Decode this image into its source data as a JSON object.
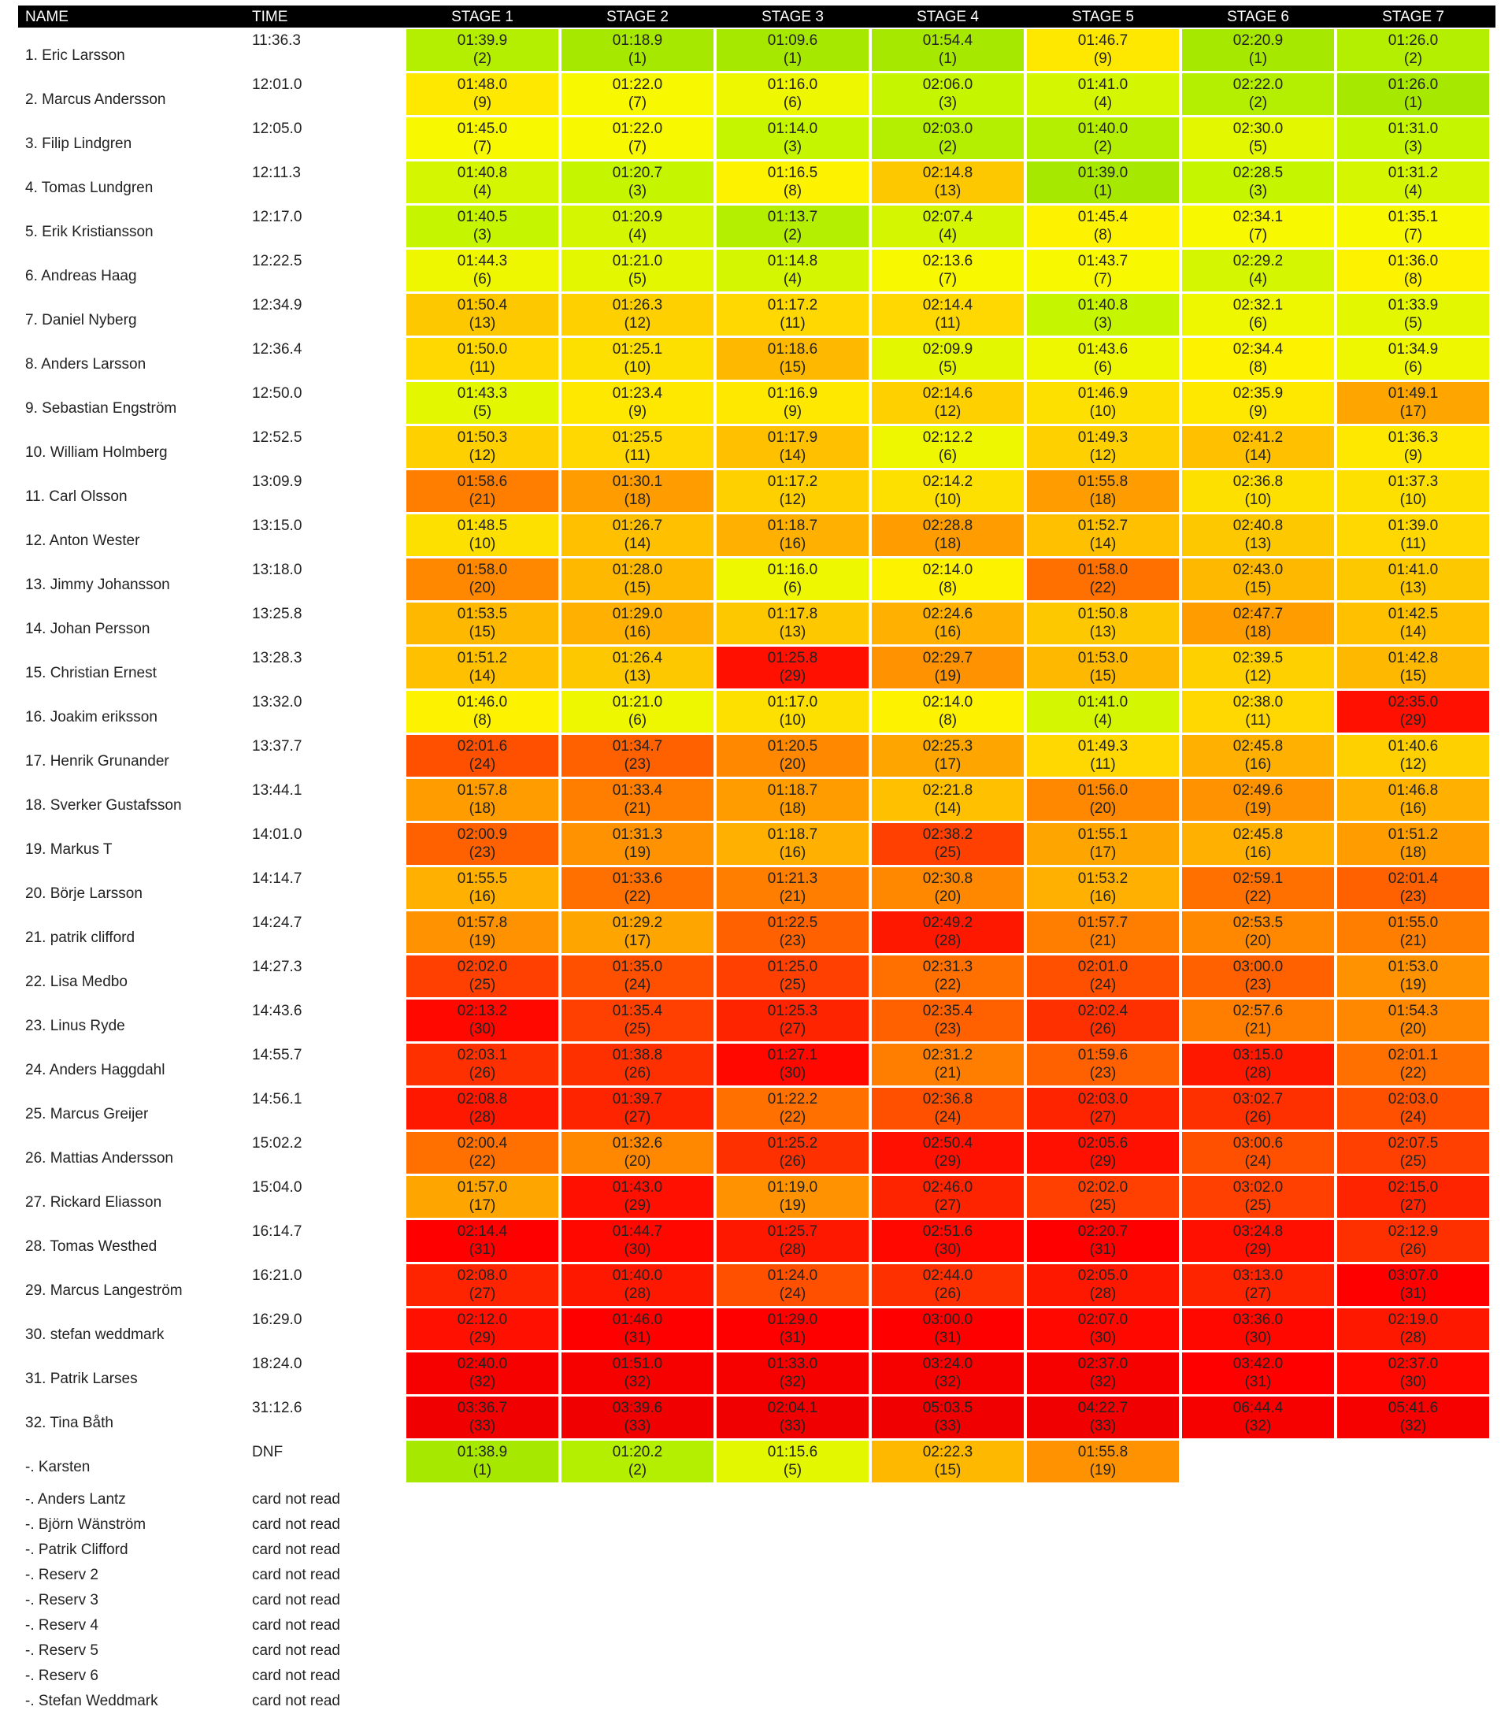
{
  "headers": {
    "name": "NAME",
    "time": "TIME",
    "stages": [
      "STAGE 1",
      "STAGE 2",
      "STAGE 3",
      "STAGE 4",
      "STAGE 5",
      "STAGE 6",
      "STAGE 7"
    ]
  },
  "rows": [
    {
      "name": "1. Eric Larsson",
      "time": "11:36.3",
      "stages": [
        [
          "01:39.9",
          "(2)"
        ],
        [
          "01:18.9",
          "(1)"
        ],
        [
          "01:09.6",
          "(1)"
        ],
        [
          "01:54.4",
          "(1)"
        ],
        [
          "01:46.7",
          "(9)"
        ],
        [
          "02:20.9",
          "(1)"
        ],
        [
          "01:26.0",
          "(2)"
        ]
      ]
    },
    {
      "name": "2. Marcus Andersson",
      "time": "12:01.0",
      "stages": [
        [
          "01:48.0",
          "(9)"
        ],
        [
          "01:22.0",
          "(7)"
        ],
        [
          "01:16.0",
          "(6)"
        ],
        [
          "02:06.0",
          "(3)"
        ],
        [
          "01:41.0",
          "(4)"
        ],
        [
          "02:22.0",
          "(2)"
        ],
        [
          "01:26.0",
          "(1)"
        ]
      ]
    },
    {
      "name": "3. Filip Lindgren",
      "time": "12:05.0",
      "stages": [
        [
          "01:45.0",
          "(7)"
        ],
        [
          "01:22.0",
          "(7)"
        ],
        [
          "01:14.0",
          "(3)"
        ],
        [
          "02:03.0",
          "(2)"
        ],
        [
          "01:40.0",
          "(2)"
        ],
        [
          "02:30.0",
          "(5)"
        ],
        [
          "01:31.0",
          "(3)"
        ]
      ]
    },
    {
      "name": "4. Tomas Lundgren",
      "time": "12:11.3",
      "stages": [
        [
          "01:40.8",
          "(4)"
        ],
        [
          "01:20.7",
          "(3)"
        ],
        [
          "01:16.5",
          "(8)"
        ],
        [
          "02:14.8",
          "(13)"
        ],
        [
          "01:39.0",
          "(1)"
        ],
        [
          "02:28.5",
          "(3)"
        ],
        [
          "01:31.2",
          "(4)"
        ]
      ]
    },
    {
      "name": "5. Erik Kristiansson",
      "time": "12:17.0",
      "stages": [
        [
          "01:40.5",
          "(3)"
        ],
        [
          "01:20.9",
          "(4)"
        ],
        [
          "01:13.7",
          "(2)"
        ],
        [
          "02:07.4",
          "(4)"
        ],
        [
          "01:45.4",
          "(8)"
        ],
        [
          "02:34.1",
          "(7)"
        ],
        [
          "01:35.1",
          "(7)"
        ]
      ]
    },
    {
      "name": "6. Andreas Haag",
      "time": "12:22.5",
      "stages": [
        [
          "01:44.3",
          "(6)"
        ],
        [
          "01:21.0",
          "(5)"
        ],
        [
          "01:14.8",
          "(4)"
        ],
        [
          "02:13.6",
          "(7)"
        ],
        [
          "01:43.7",
          "(7)"
        ],
        [
          "02:29.2",
          "(4)"
        ],
        [
          "01:36.0",
          "(8)"
        ]
      ]
    },
    {
      "name": "7. Daniel Nyberg",
      "time": "12:34.9",
      "stages": [
        [
          "01:50.4",
          "(13)"
        ],
        [
          "01:26.3",
          "(12)"
        ],
        [
          "01:17.2",
          "(11)"
        ],
        [
          "02:14.4",
          "(11)"
        ],
        [
          "01:40.8",
          "(3)"
        ],
        [
          "02:32.1",
          "(6)"
        ],
        [
          "01:33.9",
          "(5)"
        ]
      ]
    },
    {
      "name": "8. Anders Larsson",
      "time": "12:36.4",
      "stages": [
        [
          "01:50.0",
          "(11)"
        ],
        [
          "01:25.1",
          "(10)"
        ],
        [
          "01:18.6",
          "(15)"
        ],
        [
          "02:09.9",
          "(5)"
        ],
        [
          "01:43.6",
          "(6)"
        ],
        [
          "02:34.4",
          "(8)"
        ],
        [
          "01:34.9",
          "(6)"
        ]
      ]
    },
    {
      "name": "9. Sebastian Engström",
      "time": "12:50.0",
      "stages": [
        [
          "01:43.3",
          "(5)"
        ],
        [
          "01:23.4",
          "(9)"
        ],
        [
          "01:16.9",
          "(9)"
        ],
        [
          "02:14.6",
          "(12)"
        ],
        [
          "01:46.9",
          "(10)"
        ],
        [
          "02:35.9",
          "(9)"
        ],
        [
          "01:49.1",
          "(17)"
        ]
      ]
    },
    {
      "name": "10. William Holmberg",
      "time": "12:52.5",
      "stages": [
        [
          "01:50.3",
          "(12)"
        ],
        [
          "01:25.5",
          "(11)"
        ],
        [
          "01:17.9",
          "(14)"
        ],
        [
          "02:12.2",
          "(6)"
        ],
        [
          "01:49.3",
          "(12)"
        ],
        [
          "02:41.2",
          "(14)"
        ],
        [
          "01:36.3",
          "(9)"
        ]
      ]
    },
    {
      "name": "11. Carl Olsson",
      "time": "13:09.9",
      "stages": [
        [
          "01:58.6",
          "(21)"
        ],
        [
          "01:30.1",
          "(18)"
        ],
        [
          "01:17.2",
          "(12)"
        ],
        [
          "02:14.2",
          "(10)"
        ],
        [
          "01:55.8",
          "(18)"
        ],
        [
          "02:36.8",
          "(10)"
        ],
        [
          "01:37.3",
          "(10)"
        ]
      ]
    },
    {
      "name": "12. Anton Wester",
      "time": "13:15.0",
      "stages": [
        [
          "01:48.5",
          "(10)"
        ],
        [
          "01:26.7",
          "(14)"
        ],
        [
          "01:18.7",
          "(16)"
        ],
        [
          "02:28.8",
          "(18)"
        ],
        [
          "01:52.7",
          "(14)"
        ],
        [
          "02:40.8",
          "(13)"
        ],
        [
          "01:39.0",
          "(11)"
        ]
      ]
    },
    {
      "name": "13. Jimmy Johansson",
      "time": "13:18.0",
      "stages": [
        [
          "01:58.0",
          "(20)"
        ],
        [
          "01:28.0",
          "(15)"
        ],
        [
          "01:16.0",
          "(6)"
        ],
        [
          "02:14.0",
          "(8)"
        ],
        [
          "01:58.0",
          "(22)"
        ],
        [
          "02:43.0",
          "(15)"
        ],
        [
          "01:41.0",
          "(13)"
        ]
      ]
    },
    {
      "name": "14. Johan Persson",
      "time": "13:25.8",
      "stages": [
        [
          "01:53.5",
          "(15)"
        ],
        [
          "01:29.0",
          "(16)"
        ],
        [
          "01:17.8",
          "(13)"
        ],
        [
          "02:24.6",
          "(16)"
        ],
        [
          "01:50.8",
          "(13)"
        ],
        [
          "02:47.7",
          "(18)"
        ],
        [
          "01:42.5",
          "(14)"
        ]
      ]
    },
    {
      "name": "15. Christian Ernest",
      "time": "13:28.3",
      "stages": [
        [
          "01:51.2",
          "(14)"
        ],
        [
          "01:26.4",
          "(13)"
        ],
        [
          "01:25.8",
          "(29)"
        ],
        [
          "02:29.7",
          "(19)"
        ],
        [
          "01:53.0",
          "(15)"
        ],
        [
          "02:39.5",
          "(12)"
        ],
        [
          "01:42.8",
          "(15)"
        ]
      ]
    },
    {
      "name": "16. Joakim eriksson",
      "time": "13:32.0",
      "stages": [
        [
          "01:46.0",
          "(8)"
        ],
        [
          "01:21.0",
          "(6)"
        ],
        [
          "01:17.0",
          "(10)"
        ],
        [
          "02:14.0",
          "(8)"
        ],
        [
          "01:41.0",
          "(4)"
        ],
        [
          "02:38.0",
          "(11)"
        ],
        [
          "02:35.0",
          "(29)"
        ]
      ]
    },
    {
      "name": "17. Henrik Grunander",
      "time": "13:37.7",
      "stages": [
        [
          "02:01.6",
          "(24)"
        ],
        [
          "01:34.7",
          "(23)"
        ],
        [
          "01:20.5",
          "(20)"
        ],
        [
          "02:25.3",
          "(17)"
        ],
        [
          "01:49.3",
          "(11)"
        ],
        [
          "02:45.8",
          "(16)"
        ],
        [
          "01:40.6",
          "(12)"
        ]
      ]
    },
    {
      "name": "18. Sverker Gustafsson",
      "time": "13:44.1",
      "stages": [
        [
          "01:57.8",
          "(18)"
        ],
        [
          "01:33.4",
          "(21)"
        ],
        [
          "01:18.7",
          "(18)"
        ],
        [
          "02:21.8",
          "(14)"
        ],
        [
          "01:56.0",
          "(20)"
        ],
        [
          "02:49.6",
          "(19)"
        ],
        [
          "01:46.8",
          "(16)"
        ]
      ]
    },
    {
      "name": "19. Markus T",
      "time": "14:01.0",
      "stages": [
        [
          "02:00.9",
          "(23)"
        ],
        [
          "01:31.3",
          "(19)"
        ],
        [
          "01:18.7",
          "(16)"
        ],
        [
          "02:38.2",
          "(25)"
        ],
        [
          "01:55.1",
          "(17)"
        ],
        [
          "02:45.8",
          "(16)"
        ],
        [
          "01:51.2",
          "(18)"
        ]
      ]
    },
    {
      "name": "20. Börje Larsson",
      "time": "14:14.7",
      "stages": [
        [
          "01:55.5",
          "(16)"
        ],
        [
          "01:33.6",
          "(22)"
        ],
        [
          "01:21.3",
          "(21)"
        ],
        [
          "02:30.8",
          "(20)"
        ],
        [
          "01:53.2",
          "(16)"
        ],
        [
          "02:59.1",
          "(22)"
        ],
        [
          "02:01.4",
          "(23)"
        ]
      ]
    },
    {
      "name": "21. patrik clifford",
      "time": "14:24.7",
      "stages": [
        [
          "01:57.8",
          "(19)"
        ],
        [
          "01:29.2",
          "(17)"
        ],
        [
          "01:22.5",
          "(23)"
        ],
        [
          "02:49.2",
          "(28)"
        ],
        [
          "01:57.7",
          "(21)"
        ],
        [
          "02:53.5",
          "(20)"
        ],
        [
          "01:55.0",
          "(21)"
        ]
      ]
    },
    {
      "name": "22. Lisa Medbo",
      "time": "14:27.3",
      "stages": [
        [
          "02:02.0",
          "(25)"
        ],
        [
          "01:35.0",
          "(24)"
        ],
        [
          "01:25.0",
          "(25)"
        ],
        [
          "02:31.3",
          "(22)"
        ],
        [
          "02:01.0",
          "(24)"
        ],
        [
          "03:00.0",
          "(23)"
        ],
        [
          "01:53.0",
          "(19)"
        ]
      ]
    },
    {
      "name": "23. Linus Ryde",
      "time": "14:43.6",
      "stages": [
        [
          "02:13.2",
          "(30)"
        ],
        [
          "01:35.4",
          "(25)"
        ],
        [
          "01:25.3",
          "(27)"
        ],
        [
          "02:35.4",
          "(23)"
        ],
        [
          "02:02.4",
          "(26)"
        ],
        [
          "02:57.6",
          "(21)"
        ],
        [
          "01:54.3",
          "(20)"
        ]
      ]
    },
    {
      "name": "24. Anders Haggdahl",
      "time": "14:55.7",
      "stages": [
        [
          "02:03.1",
          "(26)"
        ],
        [
          "01:38.8",
          "(26)"
        ],
        [
          "01:27.1",
          "(30)"
        ],
        [
          "02:31.2",
          "(21)"
        ],
        [
          "01:59.6",
          "(23)"
        ],
        [
          "03:15.0",
          "(28)"
        ],
        [
          "02:01.1",
          "(22)"
        ]
      ]
    },
    {
      "name": "25. Marcus Greijer",
      "time": "14:56.1",
      "stages": [
        [
          "02:08.8",
          "(28)"
        ],
        [
          "01:39.7",
          "(27)"
        ],
        [
          "01:22.2",
          "(22)"
        ],
        [
          "02:36.8",
          "(24)"
        ],
        [
          "02:03.0",
          "(27)"
        ],
        [
          "03:02.7",
          "(26)"
        ],
        [
          "02:03.0",
          "(24)"
        ]
      ]
    },
    {
      "name": "26. Mattias Andersson",
      "time": "15:02.2",
      "stages": [
        [
          "02:00.4",
          "(22)"
        ],
        [
          "01:32.6",
          "(20)"
        ],
        [
          "01:25.2",
          "(26)"
        ],
        [
          "02:50.4",
          "(29)"
        ],
        [
          "02:05.6",
          "(29)"
        ],
        [
          "03:00.6",
          "(24)"
        ],
        [
          "02:07.5",
          "(25)"
        ]
      ]
    },
    {
      "name": "27. Rickard Eliasson",
      "time": "15:04.0",
      "stages": [
        [
          "01:57.0",
          "(17)"
        ],
        [
          "01:43.0",
          "(29)"
        ],
        [
          "01:19.0",
          "(19)"
        ],
        [
          "02:46.0",
          "(27)"
        ],
        [
          "02:02.0",
          "(25)"
        ],
        [
          "03:02.0",
          "(25)"
        ],
        [
          "02:15.0",
          "(27)"
        ]
      ]
    },
    {
      "name": "28. Tomas Westhed",
      "time": "16:14.7",
      "stages": [
        [
          "02:14.4",
          "(31)"
        ],
        [
          "01:44.7",
          "(30)"
        ],
        [
          "01:25.7",
          "(28)"
        ],
        [
          "02:51.6",
          "(30)"
        ],
        [
          "02:20.7",
          "(31)"
        ],
        [
          "03:24.8",
          "(29)"
        ],
        [
          "02:12.9",
          "(26)"
        ]
      ]
    },
    {
      "name": "29. Marcus Langeström",
      "time": "16:21.0",
      "stages": [
        [
          "02:08.0",
          "(27)"
        ],
        [
          "01:40.0",
          "(28)"
        ],
        [
          "01:24.0",
          "(24)"
        ],
        [
          "02:44.0",
          "(26)"
        ],
        [
          "02:05.0",
          "(28)"
        ],
        [
          "03:13.0",
          "(27)"
        ],
        [
          "03:07.0",
          "(31)"
        ]
      ]
    },
    {
      "name": "30. stefan weddmark",
      "time": "16:29.0",
      "stages": [
        [
          "02:12.0",
          "(29)"
        ],
        [
          "01:46.0",
          "(31)"
        ],
        [
          "01:29.0",
          "(31)"
        ],
        [
          "03:00.0",
          "(31)"
        ],
        [
          "02:07.0",
          "(30)"
        ],
        [
          "03:36.0",
          "(30)"
        ],
        [
          "02:19.0",
          "(28)"
        ]
      ]
    },
    {
      "name": "31. Patrik Larses",
      "time": "18:24.0",
      "stages": [
        [
          "02:40.0",
          "(32)"
        ],
        [
          "01:51.0",
          "(32)"
        ],
        [
          "01:33.0",
          "(32)"
        ],
        [
          "03:24.0",
          "(32)"
        ],
        [
          "02:37.0",
          "(32)"
        ],
        [
          "03:42.0",
          "(31)"
        ],
        [
          "02:37.0",
          "(30)"
        ]
      ]
    },
    {
      "name": "32. Tina Båth",
      "time": "31:12.6",
      "stages": [
        [
          "03:36.7",
          "(33)"
        ],
        [
          "03:39.6",
          "(33)"
        ],
        [
          "02:04.1",
          "(33)"
        ],
        [
          "05:03.5",
          "(33)"
        ],
        [
          "04:22.7",
          "(33)"
        ],
        [
          "06:44.4",
          "(32)"
        ],
        [
          "05:41.6",
          "(32)"
        ]
      ]
    },
    {
      "name": "-. Karsten",
      "time": "DNF",
      "stages": [
        [
          "01:38.9",
          "(1)"
        ],
        [
          "01:20.2",
          "(2)"
        ],
        [
          "01:15.6",
          "(5)"
        ],
        [
          "02:22.3",
          "(15)"
        ],
        [
          "01:55.8",
          "(19)"
        ]
      ]
    }
  ],
  "unread": [
    {
      "name": "-. Anders Lantz",
      "time": "card not read"
    },
    {
      "name": "-. Björn Wänström",
      "time": "card not read"
    },
    {
      "name": "-. Patrik Clifford",
      "time": "card not read"
    },
    {
      "name": "-. Reserv 2",
      "time": "card not read"
    },
    {
      "name": "-. Reserv 3",
      "time": "card not read"
    },
    {
      "name": "-. Reserv 4",
      "time": "card not read"
    },
    {
      "name": "-. Reserv 5",
      "time": "card not read"
    },
    {
      "name": "-. Reserv 6",
      "time": "card not read"
    },
    {
      "name": "-. Stefan Weddmark",
      "time": "card not read"
    }
  ],
  "rank_colors": [
    "#a6e800",
    "#b4ee00",
    "#c6f500",
    "#d4f600",
    "#e2f700",
    "#eef700",
    "#f8f800",
    "#fdf200",
    "#fee800",
    "#fee000",
    "#fed800",
    "#fed000",
    "#fec800",
    "#ffc000",
    "#feb800",
    "#ffb000",
    "#ffa500",
    "#ff9c00",
    "#ff9200",
    "#ff8800",
    "#ff7e00",
    "#ff7000",
    "#ff6000",
    "#ff5000",
    "#ff4000",
    "#ff3000",
    "#ff2400",
    "#ff1800",
    "#ff1000",
    "#ff0800",
    "#fe0000",
    "#f60000",
    "#f00000"
  ]
}
